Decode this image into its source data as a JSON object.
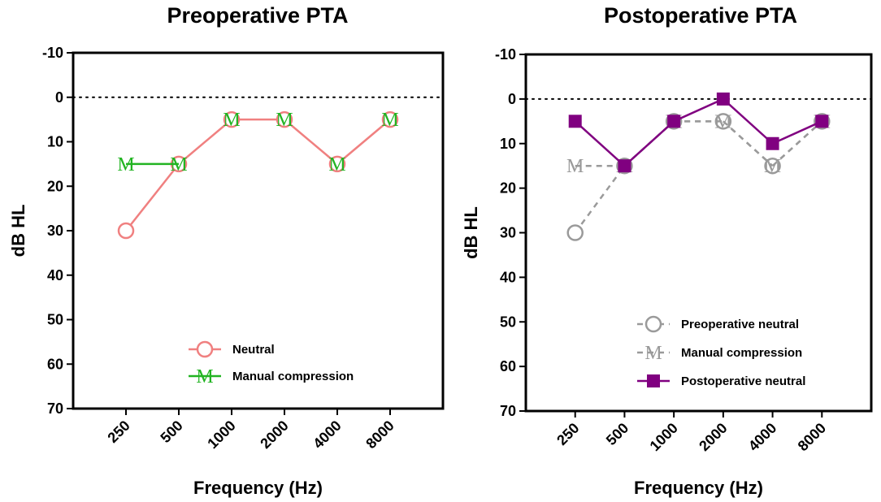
{
  "chart_data": [
    {
      "type": "line",
      "title": "Preoperative  PTA",
      "xlabel": "Frequency (Hz)",
      "ylabel": "dB  HL",
      "categories": [
        "250",
        "500",
        "1000",
        "2000",
        "4000",
        "8000"
      ],
      "ylim": [
        -10,
        70
      ],
      "y_ticks": [
        "-10",
        "0",
        "10",
        "20",
        "30",
        "40",
        "50",
        "60",
        "70"
      ],
      "y_inverted": true,
      "reference_line": 0,
      "legend_position": "bottom-right",
      "series": [
        {
          "name": "Neutral",
          "values": [
            30,
            15,
            5,
            5,
            15,
            5
          ],
          "color": "#f08080",
          "marker": "open-circle",
          "dash": "solid"
        },
        {
          "name": "Manual compression",
          "values": [
            15,
            15,
            5,
            5,
            15,
            5
          ],
          "color": "#22b422",
          "marker": "M",
          "marker_label": "M",
          "dash": "solid",
          "draw_line_segments": [
            [
              0,
              1
            ]
          ]
        }
      ]
    },
    {
      "type": "line",
      "title": "Postoperative  PTA",
      "xlabel": "Frequency (Hz)",
      "ylabel": "dB  HL",
      "categories": [
        "250",
        "500",
        "1000",
        "2000",
        "4000",
        "8000"
      ],
      "ylim": [
        -10,
        70
      ],
      "y_ticks": [
        "-10",
        "0",
        "10",
        "20",
        "30",
        "40",
        "50",
        "60",
        "70"
      ],
      "y_inverted": true,
      "reference_line": 0,
      "legend_position": "bottom-right",
      "series": [
        {
          "name": "Preoperative neutral",
          "values": [
            30,
            15,
            5,
            5,
            15,
            5
          ],
          "color": "#9a9a9a",
          "marker": "open-circle",
          "dash": "dashed"
        },
        {
          "name": "Manual compression",
          "values": [
            15,
            15,
            5,
            5,
            15,
            5
          ],
          "color": "#9a9a9a",
          "marker": "M",
          "marker_label": "M",
          "dash": "dashed"
        },
        {
          "name": "Postoperative neutral",
          "values": [
            5,
            15,
            5,
            0,
            10,
            5
          ],
          "color": "#800080",
          "marker": "filled-square",
          "dash": "solid"
        }
      ]
    }
  ]
}
